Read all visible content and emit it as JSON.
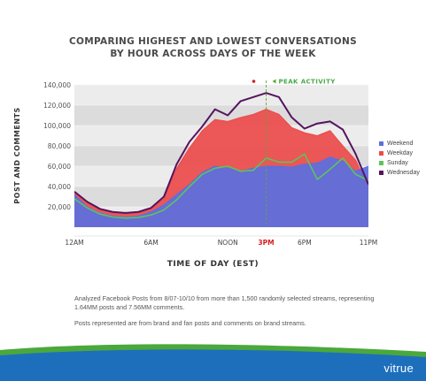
{
  "title_line1": "COMPARING HIGHEST AND LOWEST CONVERSATIONS",
  "title_line2": "BY HOUR ACROSS DAYS OF THE WEEK",
  "peak_label": "PEAK ACTIVITY",
  "notes": [
    "Analyzed Facebook Posts from 8/07-10/10 from more than 1,500 randomly selected streams, representing 1.64MM posts and 7.56MM comments.",
    "Posts represented are from brand and fan posts and comments on brand streams."
  ],
  "brand": "vitrue",
  "colors": {
    "weekend": "#5a6fe0",
    "weekday": "#ec4a4a",
    "sunday": "#5ec35e",
    "wednesday": "#55155e",
    "peak_line": "#5aaa3a",
    "footer_green": "#4aa83c",
    "footer_blue": "#1d6fbc"
  },
  "chart_data": {
    "type": "area",
    "title": "COMPARING HIGHEST AND LOWEST CONVERSATIONS BY HOUR ACROSS DAYS OF THE WEEK",
    "xlabel": "TIME OF DAY (EST)",
    "ylabel": "POST AND COMMENTS",
    "x": [
      0,
      1,
      2,
      3,
      4,
      5,
      6,
      7,
      8,
      9,
      10,
      11,
      12,
      13,
      14,
      15,
      16,
      17,
      18,
      19,
      20,
      21,
      22,
      23
    ],
    "x_ticks": [
      {
        "x": 0,
        "label": "12AM"
      },
      {
        "x": 6,
        "label": "6AM"
      },
      {
        "x": 12,
        "label": "NOON"
      },
      {
        "x": 15,
        "label": "3PM",
        "highlight": true
      },
      {
        "x": 18,
        "label": "6PM"
      },
      {
        "x": 23,
        "label": "11PM"
      }
    ],
    "y_ticks": [
      {
        "y": 20000,
        "label": "20,000"
      },
      {
        "y": 40000,
        "label": "40,000"
      },
      {
        "y": 60000,
        "label": "60,000"
      },
      {
        "y": 80000,
        "label": "80,000"
      },
      {
        "y": 100000,
        "label": "100,000"
      },
      {
        "y": 120000,
        "label": "120,000"
      },
      {
        "y": 140000,
        "label": "140,000"
      }
    ],
    "ylim": [
      0,
      140000
    ],
    "xlim": [
      0,
      23
    ],
    "peak_x": 15,
    "legend_position": "right",
    "series": [
      {
        "name": "Weekend",
        "kind": "area",
        "color": "#5a6fe0",
        "values": [
          32000,
          20000,
          14000,
          11000,
          10000,
          11000,
          15000,
          22000,
          32000,
          42000,
          54000,
          60000,
          58000,
          55000,
          58000,
          60000,
          60000,
          59000,
          62000,
          63000,
          69000,
          65000,
          55000,
          60000
        ]
      },
      {
        "name": "Weekday",
        "kind": "area",
        "color": "#ec4a4a",
        "values": [
          34000,
          24000,
          17000,
          14000,
          13000,
          14000,
          18000,
          28000,
          58000,
          78000,
          95000,
          106000,
          104000,
          108000,
          111000,
          116000,
          111000,
          98000,
          93000,
          90000,
          95000,
          80000,
          66000,
          40000
        ]
      },
      {
        "name": "Sunday",
        "kind": "line",
        "color": "#5ec35e",
        "values": [
          28000,
          19000,
          13000,
          10000,
          9000,
          9500,
          12000,
          17000,
          27000,
          40000,
          52000,
          58000,
          60000,
          55000,
          56000,
          68000,
          64000,
          64000,
          72000,
          47000,
          57000,
          68000,
          52000,
          46000
        ]
      },
      {
        "name": "Wednesday",
        "kind": "line",
        "color": "#55155e",
        "values": [
          35000,
          25000,
          18000,
          15000,
          14000,
          15000,
          19000,
          30000,
          62000,
          84000,
          99000,
          116000,
          110000,
          124000,
          128000,
          132000,
          128000,
          108000,
          97000,
          102000,
          104000,
          96000,
          72000,
          42000
        ]
      }
    ]
  }
}
